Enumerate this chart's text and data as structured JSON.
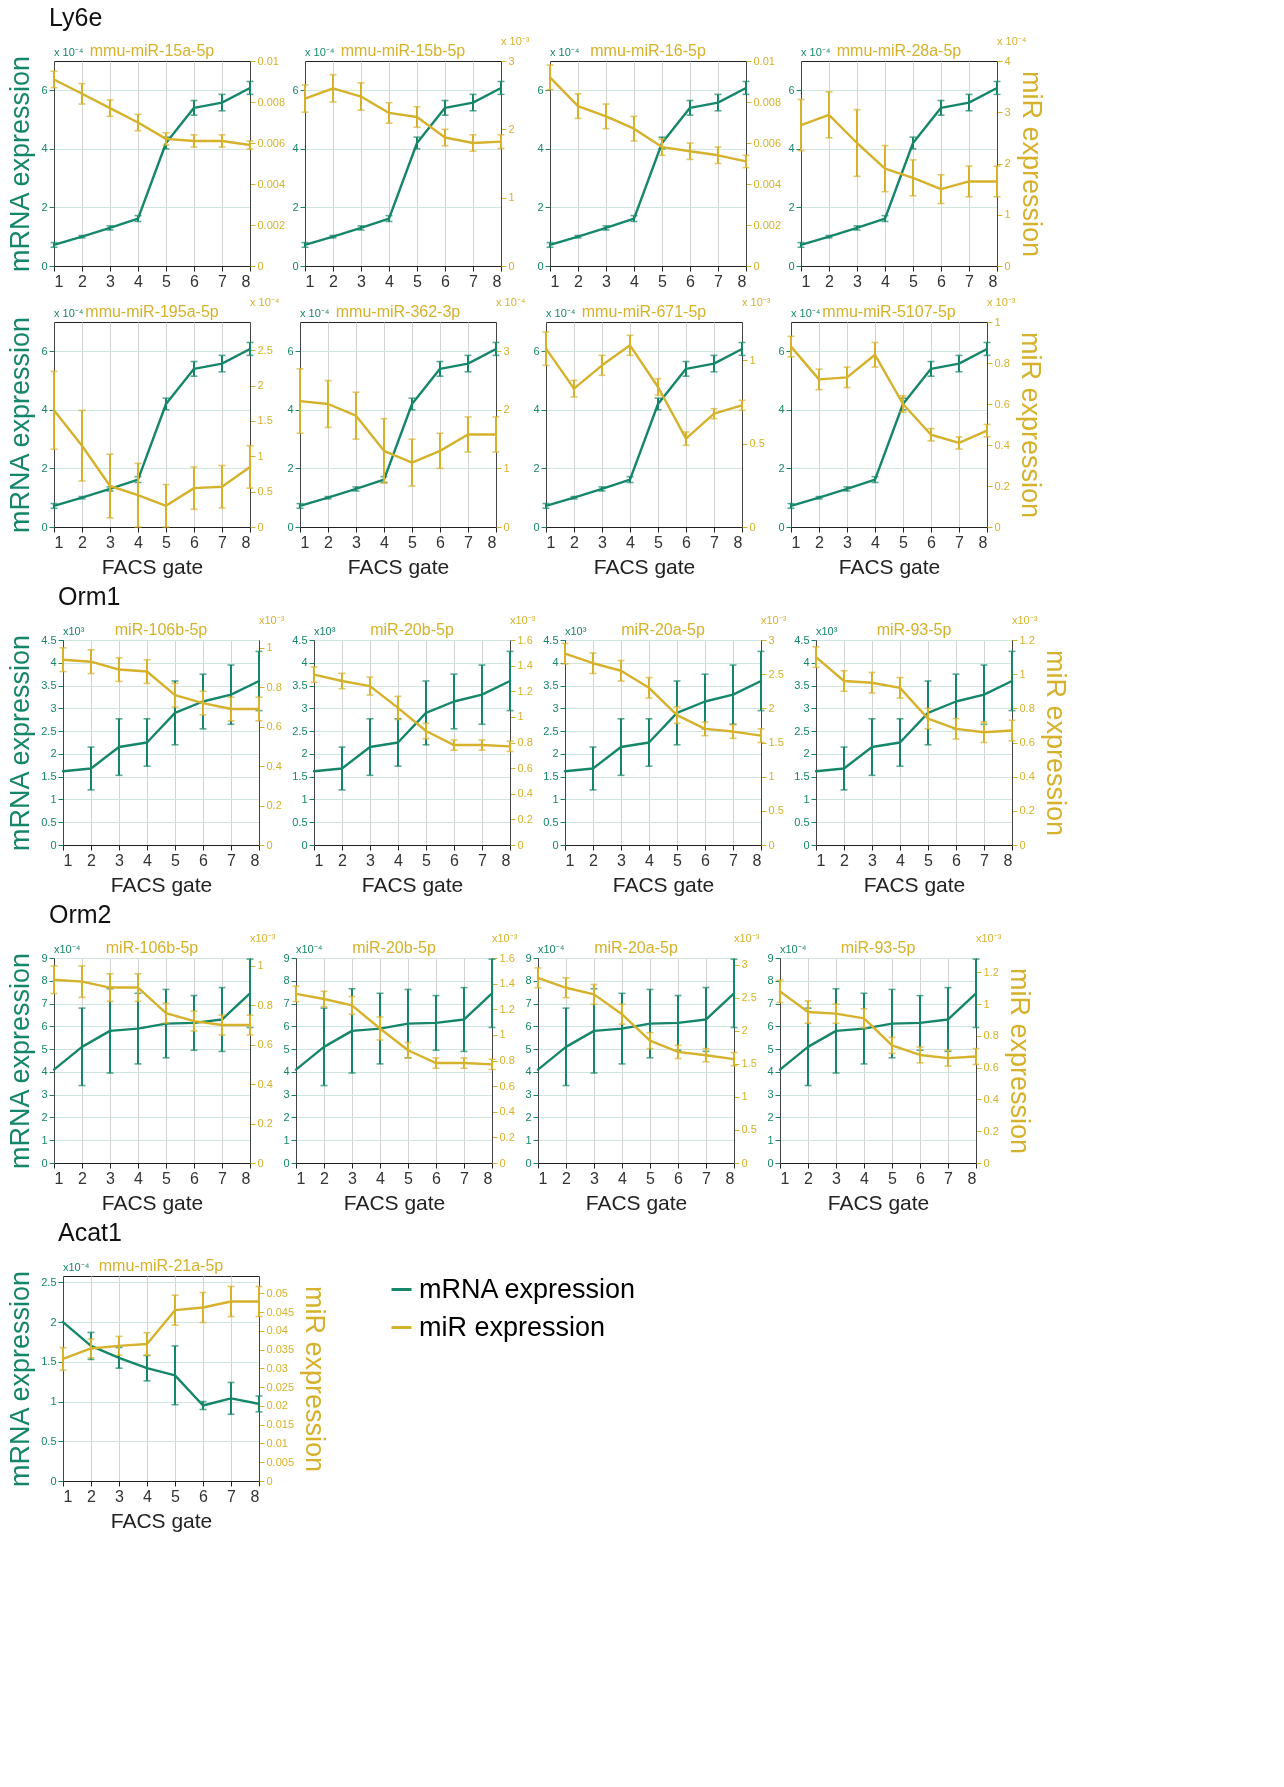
{
  "chart_data": [
    {
      "type": "line",
      "title": "mmu-miR-15a-5p",
      "subtitle": "Ly6e",
      "ylabel": "mRNA expression",
      "annotations": [
        "x 10⁻⁴"
      ],
      "x": [
        1,
        2,
        3,
        4,
        5,
        6,
        7,
        8
      ],
      "xlim": [
        1,
        8
      ],
      "xticks": [
        1,
        2,
        3,
        4,
        5,
        6,
        7,
        8
      ],
      "ylim": [
        0,
        7
      ],
      "yticks": [
        0,
        2,
        4,
        6
      ],
      "y2lim": [
        0,
        0.01
      ],
      "y2ticks": [
        0,
        0.002,
        0.004,
        0.006,
        0.008,
        0.01
      ],
      "grid": true,
      "series": [
        {
          "color": "#16866a",
          "values": [
            0.72,
            1.0,
            1.3,
            1.62,
            4.2,
            5.4,
            5.58,
            6.08
          ],
          "errors": [
            0.08,
            0.04,
            0.07,
            0.1,
            0.2,
            0.25,
            0.28,
            0.22
          ]
        },
        {
          "color": "#d5b12c",
          "axis": "y2",
          "values": [
            0.0091,
            0.0084,
            0.0077,
            0.007,
            0.0062,
            0.0061,
            0.0061,
            0.0059
          ],
          "errors": [
            0.0004,
            0.0005,
            0.0004,
            0.0004,
            0.0003,
            0.0003,
            0.0003,
            0.0002
          ]
        }
      ]
    },
    {
      "type": "line",
      "title": "mmu-miR-15b-5p",
      "annotations": [
        "x 10⁻⁴",
        "x 10⁻³"
      ],
      "x": [
        1,
        2,
        3,
        4,
        5,
        6,
        7,
        8
      ],
      "xlim": [
        1,
        8
      ],
      "xticks": [
        1,
        2,
        3,
        4,
        5,
        6,
        7,
        8
      ],
      "ylim": [
        0,
        7
      ],
      "yticks": [
        0,
        2,
        4,
        6
      ],
      "y2lim": [
        0,
        3
      ],
      "y2ticks": [
        0,
        1,
        2,
        3
      ],
      "grid": true,
      "series": [
        {
          "color": "#16866a",
          "values": [
            0.72,
            1.0,
            1.3,
            1.62,
            4.2,
            5.4,
            5.58,
            6.08
          ],
          "errors": [
            0.08,
            0.04,
            0.07,
            0.1,
            0.2,
            0.25,
            0.28,
            0.22
          ]
        },
        {
          "color": "#d5b12c",
          "axis": "y2",
          "values": [
            2.45,
            2.6,
            2.48,
            2.24,
            2.18,
            1.88,
            1.8,
            1.82
          ],
          "errors": [
            0.2,
            0.2,
            0.2,
            0.15,
            0.15,
            0.12,
            0.12,
            0.1
          ]
        }
      ]
    },
    {
      "type": "line",
      "title": "mmu-miR-16-5p",
      "annotations": [
        "x 10⁻⁴"
      ],
      "x": [
        1,
        2,
        3,
        4,
        5,
        6,
        7,
        8
      ],
      "xlim": [
        1,
        8
      ],
      "xticks": [
        1,
        2,
        3,
        4,
        5,
        6,
        7,
        8
      ],
      "ylim": [
        0,
        7
      ],
      "yticks": [
        0,
        2,
        4,
        6
      ],
      "y2lim": [
        0,
        0.01
      ],
      "y2ticks": [
        0,
        0.002,
        0.004,
        0.006,
        0.008,
        0.01
      ],
      "grid": true,
      "series": [
        {
          "color": "#16866a",
          "values": [
            0.72,
            1.0,
            1.3,
            1.62,
            4.2,
            5.4,
            5.58,
            6.08
          ],
          "errors": [
            0.08,
            0.04,
            0.07,
            0.1,
            0.2,
            0.25,
            0.28,
            0.22
          ]
        },
        {
          "color": "#d5b12c",
          "axis": "y2",
          "values": [
            0.0092,
            0.0078,
            0.0073,
            0.0067,
            0.0058,
            0.0056,
            0.0054,
            0.0051
          ],
          "errors": [
            0.0006,
            0.0006,
            0.0006,
            0.0006,
            0.0004,
            0.0004,
            0.0004,
            0.0003
          ]
        }
      ]
    },
    {
      "type": "line",
      "title": "mmu-miR-28a-5p",
      "y2label": "miR expression",
      "annotations": [
        "x 10⁻⁴",
        "x 10⁻⁴"
      ],
      "x": [
        1,
        2,
        3,
        4,
        5,
        6,
        7,
        8
      ],
      "xlim": [
        1,
        8
      ],
      "xticks": [
        1,
        2,
        3,
        4,
        5,
        6,
        7,
        8
      ],
      "ylim": [
        0,
        7
      ],
      "yticks": [
        0,
        2,
        4,
        6
      ],
      "y2lim": [
        0,
        4
      ],
      "y2ticks": [
        0,
        1,
        2,
        3,
        4
      ],
      "grid": true,
      "series": [
        {
          "color": "#16866a",
          "values": [
            0.72,
            1.0,
            1.3,
            1.62,
            4.2,
            5.4,
            5.58,
            6.08
          ],
          "errors": [
            0.08,
            0.04,
            0.07,
            0.1,
            0.2,
            0.25,
            0.28,
            0.22
          ]
        },
        {
          "color": "#d5b12c",
          "axis": "y2",
          "values": [
            2.75,
            2.95,
            2.4,
            1.9,
            1.72,
            1.5,
            1.65,
            1.65
          ],
          "errors": [
            0.5,
            0.45,
            0.65,
            0.45,
            0.35,
            0.28,
            0.3,
            0.3
          ]
        }
      ]
    },
    {
      "type": "line",
      "title": "mmu-miR-195a-5p",
      "xlabel": "FACS gate",
      "ylabel": "mRNA expression",
      "annotations": [
        "x 10⁻⁴",
        "x 10⁻⁴"
      ],
      "x": [
        1,
        2,
        3,
        4,
        5,
        6,
        7,
        8
      ],
      "xlim": [
        1,
        8
      ],
      "xticks": [
        1,
        2,
        3,
        4,
        5,
        6,
        7,
        8
      ],
      "ylim": [
        0,
        7
      ],
      "yticks": [
        0,
        2,
        4,
        6
      ],
      "y2lim": [
        0,
        2.9
      ],
      "y2ticks": [
        0,
        0.5,
        1,
        1.5,
        2,
        2.5
      ],
      "grid": true,
      "series": [
        {
          "color": "#16866a",
          "values": [
            0.72,
            1.0,
            1.3,
            1.62,
            4.2,
            5.4,
            5.58,
            6.08
          ],
          "errors": [
            0.08,
            0.04,
            0.07,
            0.1,
            0.2,
            0.25,
            0.28,
            0.22
          ]
        },
        {
          "color": "#d5b12c",
          "axis": "y2",
          "values": [
            1.65,
            1.15,
            0.58,
            0.45,
            0.3,
            0.55,
            0.57,
            0.85
          ],
          "errors": [
            0.55,
            0.5,
            0.45,
            0.45,
            0.3,
            0.3,
            0.3,
            0.3
          ]
        }
      ]
    },
    {
      "type": "line",
      "title": "mmu-miR-362-3p",
      "xlabel": "FACS gate",
      "annotations": [
        "x 10⁻⁴",
        "x 10⁻⁴"
      ],
      "x": [
        1,
        2,
        3,
        4,
        5,
        6,
        7,
        8
      ],
      "xlim": [
        1,
        8
      ],
      "xticks": [
        1,
        2,
        3,
        4,
        5,
        6,
        7,
        8
      ],
      "ylim": [
        0,
        7
      ],
      "yticks": [
        0,
        2,
        4,
        6
      ],
      "y2lim": [
        0,
        3.5
      ],
      "y2ticks": [
        0,
        1,
        2,
        3
      ],
      "grid": true,
      "series": [
        {
          "color": "#16866a",
          "values": [
            0.72,
            1.0,
            1.3,
            1.62,
            4.2,
            5.4,
            5.58,
            6.08
          ],
          "errors": [
            0.08,
            0.04,
            0.07,
            0.1,
            0.2,
            0.25,
            0.28,
            0.22
          ]
        },
        {
          "color": "#d5b12c",
          "axis": "y2",
          "values": [
            2.15,
            2.1,
            1.9,
            1.3,
            1.1,
            1.3,
            1.58,
            1.58
          ],
          "errors": [
            0.55,
            0.4,
            0.4,
            0.55,
            0.4,
            0.3,
            0.3,
            0.3
          ]
        }
      ]
    },
    {
      "type": "line",
      "title": "mmu-miR-671-5p",
      "xlabel": "FACS gate",
      "annotations": [
        "x 10⁻⁴",
        "x 10⁻³"
      ],
      "x": [
        1,
        2,
        3,
        4,
        5,
        6,
        7,
        8
      ],
      "xlim": [
        1,
        8
      ],
      "xticks": [
        1,
        2,
        3,
        4,
        5,
        6,
        7,
        8
      ],
      "ylim": [
        0,
        7
      ],
      "yticks": [
        0,
        2,
        4,
        6
      ],
      "y2lim": [
        0,
        1.23
      ],
      "y2ticks": [
        0,
        0.5,
        1
      ],
      "grid": true,
      "series": [
        {
          "color": "#16866a",
          "values": [
            0.72,
            1.0,
            1.3,
            1.62,
            4.2,
            5.4,
            5.58,
            6.08
          ],
          "errors": [
            0.08,
            0.04,
            0.07,
            0.1,
            0.2,
            0.25,
            0.28,
            0.22
          ]
        },
        {
          "color": "#d5b12c",
          "axis": "y2",
          "values": [
            1.07,
            0.83,
            0.97,
            1.09,
            0.84,
            0.53,
            0.68,
            0.73
          ],
          "errors": [
            0.1,
            0.05,
            0.06,
            0.06,
            0.05,
            0.04,
            0.03,
            0.03
          ]
        }
      ]
    },
    {
      "type": "line",
      "title": "mmu-miR-5107-5p",
      "xlabel": "FACS gate",
      "y2label": "miR expression",
      "annotations": [
        "x 10⁻⁴",
        "x 10⁻³"
      ],
      "x": [
        1,
        2,
        3,
        4,
        5,
        6,
        7,
        8
      ],
      "xlim": [
        1,
        8
      ],
      "xticks": [
        1,
        2,
        3,
        4,
        5,
        6,
        7,
        8
      ],
      "ylim": [
        0,
        7
      ],
      "yticks": [
        0,
        2,
        4,
        6
      ],
      "y2lim": [
        0,
        1
      ],
      "y2ticks": [
        0,
        0.2,
        0.4,
        0.6,
        0.8,
        1
      ],
      "grid": true,
      "series": [
        {
          "color": "#16866a",
          "values": [
            0.72,
            1.0,
            1.3,
            1.62,
            4.2,
            5.4,
            5.58,
            6.08
          ],
          "errors": [
            0.08,
            0.04,
            0.07,
            0.1,
            0.2,
            0.25,
            0.28,
            0.22
          ]
        },
        {
          "color": "#d5b12c",
          "axis": "y2",
          "values": [
            0.88,
            0.72,
            0.73,
            0.84,
            0.6,
            0.45,
            0.41,
            0.47
          ],
          "errors": [
            0.05,
            0.05,
            0.05,
            0.06,
            0.04,
            0.03,
            0.03,
            0.03
          ]
        }
      ]
    },
    {
      "type": "line",
      "title": "miR-106b-5p",
      "subtitle": "Orm1",
      "xlabel": "FACS gate",
      "ylabel": "mRNA expression",
      "annotations": [
        "x10³",
        "x10⁻³"
      ],
      "x": [
        1,
        2,
        3,
        4,
        5,
        6,
        7,
        8
      ],
      "xlim": [
        1,
        8
      ],
      "xticks": [
        1,
        2,
        3,
        4,
        5,
        6,
        7,
        8
      ],
      "ylim": [
        0,
        4.5
      ],
      "yticks": [
        0,
        0.5,
        1,
        1.5,
        2,
        2.5,
        3,
        3.5,
        4,
        4.5
      ],
      "y2lim": [
        0,
        1.04
      ],
      "y2ticks": [
        0,
        0.2,
        0.4,
        0.6,
        0.8,
        1
      ],
      "grid": true,
      "series": [
        {
          "color": "#16866a",
          "values": [
            1.62,
            1.68,
            2.15,
            2.25,
            2.9,
            3.15,
            3.3,
            3.6
          ],
          "errors": [
            null,
            0.47,
            0.62,
            0.52,
            0.7,
            0.6,
            0.65,
            0.65
          ]
        },
        {
          "color": "#d5b12c",
          "axis": "y2",
          "values": [
            0.94,
            0.93,
            0.89,
            0.88,
            0.76,
            0.72,
            0.69,
            0.69
          ],
          "errors": [
            0.06,
            0.06,
            0.06,
            0.06,
            0.06,
            0.06,
            0.06,
            0.06
          ]
        }
      ]
    },
    {
      "type": "line",
      "title": "miR-20b-5p",
      "xlabel": "FACS gate",
      "annotations": [
        "x10³",
        "x10⁻³"
      ],
      "x": [
        1,
        2,
        3,
        4,
        5,
        6,
        7,
        8
      ],
      "xlim": [
        1,
        8
      ],
      "xticks": [
        1,
        2,
        3,
        4,
        5,
        6,
        7,
        8
      ],
      "ylim": [
        0,
        4.5
      ],
      "yticks": [
        0,
        0.5,
        1,
        1.5,
        2,
        2.5,
        3,
        3.5,
        4,
        4.5
      ],
      "y2lim": [
        0,
        1.6
      ],
      "y2ticks": [
        0,
        0.2,
        0.4,
        0.6,
        0.8,
        1,
        1.2,
        1.4,
        1.6
      ],
      "grid": true,
      "series": [
        {
          "color": "#16866a",
          "values": [
            1.62,
            1.68,
            2.15,
            2.25,
            2.9,
            3.15,
            3.3,
            3.6
          ],
          "errors": [
            null,
            0.47,
            0.62,
            0.52,
            0.7,
            0.6,
            0.65,
            0.65
          ]
        },
        {
          "color": "#d5b12c",
          "axis": "y2",
          "values": [
            1.33,
            1.28,
            1.24,
            1.07,
            0.89,
            0.78,
            0.78,
            0.77
          ],
          "errors": [
            0.06,
            0.06,
            0.07,
            0.09,
            0.06,
            0.04,
            0.04,
            0.04
          ]
        }
      ]
    },
    {
      "type": "line",
      "title": "miR-20a-5p",
      "xlabel": "FACS gate",
      "annotations": [
        "x10³",
        "x10⁻³"
      ],
      "x": [
        1,
        2,
        3,
        4,
        5,
        6,
        7,
        8
      ],
      "xlim": [
        1,
        8
      ],
      "xticks": [
        1,
        2,
        3,
        4,
        5,
        6,
        7,
        8
      ],
      "ylim": [
        0,
        4.5
      ],
      "yticks": [
        0,
        0.5,
        1,
        1.5,
        2,
        2.5,
        3,
        3.5,
        4,
        4.5
      ],
      "y2lim": [
        0,
        3
      ],
      "y2ticks": [
        0,
        0.5,
        1,
        1.5,
        2,
        2.5,
        3
      ],
      "grid": true,
      "series": [
        {
          "color": "#16866a",
          "values": [
            1.62,
            1.68,
            2.15,
            2.25,
            2.9,
            3.15,
            3.3,
            3.6
          ],
          "errors": [
            null,
            0.47,
            0.62,
            0.52,
            0.7,
            0.6,
            0.65,
            0.65
          ]
        },
        {
          "color": "#d5b12c",
          "axis": "y2",
          "values": [
            2.8,
            2.66,
            2.55,
            2.3,
            1.9,
            1.7,
            1.66,
            1.6
          ],
          "errors": [
            0.15,
            0.15,
            0.15,
            0.15,
            0.12,
            0.1,
            0.1,
            0.1
          ]
        }
      ]
    },
    {
      "type": "line",
      "title": "miR-93-5p",
      "xlabel": "FACS gate",
      "y2label": "miR expression",
      "annotations": [
        "x10³",
        "x10⁻³"
      ],
      "x": [
        1,
        2,
        3,
        4,
        5,
        6,
        7,
        8
      ],
      "xlim": [
        1,
        8
      ],
      "xticks": [
        1,
        2,
        3,
        4,
        5,
        6,
        7,
        8
      ],
      "ylim": [
        0,
        4.5
      ],
      "yticks": [
        0,
        0.5,
        1,
        1.5,
        2,
        2.5,
        3,
        3.5,
        4,
        4.5
      ],
      "y2lim": [
        0,
        1.2
      ],
      "y2ticks": [
        0,
        0.2,
        0.4,
        0.6,
        0.8,
        1,
        1.2
      ],
      "grid": true,
      "series": [
        {
          "color": "#16866a",
          "values": [
            1.62,
            1.68,
            2.15,
            2.25,
            2.9,
            3.15,
            3.3,
            3.6
          ],
          "errors": [
            null,
            0.47,
            0.62,
            0.52,
            0.7,
            0.6,
            0.65,
            0.65
          ]
        },
        {
          "color": "#d5b12c",
          "axis": "y2",
          "values": [
            1.1,
            0.96,
            0.95,
            0.92,
            0.74,
            0.68,
            0.66,
            0.67
          ],
          "errors": [
            0.06,
            0.06,
            0.06,
            0.06,
            0.06,
            0.06,
            0.06,
            0.06
          ]
        }
      ]
    },
    {
      "type": "line",
      "title": "miR-106b-5p",
      "subtitle": "Orm2",
      "xlabel": "FACS gate",
      "ylabel": "mRNA expression",
      "annotations": [
        "x10⁻⁴",
        "x10⁻³"
      ],
      "x": [
        1,
        2,
        3,
        4,
        5,
        6,
        7,
        8
      ],
      "xlim": [
        1,
        8
      ],
      "xticks": [
        1,
        2,
        3,
        4,
        5,
        6,
        7,
        8
      ],
      "ylim": [
        0,
        9
      ],
      "yticks": [
        0,
        1,
        2,
        3,
        4,
        5,
        6,
        7,
        8,
        9
      ],
      "y2lim": [
        0,
        1.04
      ],
      "y2ticks": [
        0,
        0.2,
        0.4,
        0.6,
        0.8,
        1
      ],
      "grid": true,
      "series": [
        {
          "color": "#16866a",
          "values": [
            4.1,
            5.1,
            5.8,
            5.9,
            6.12,
            6.15,
            6.3,
            7.45
          ],
          "errors": [
            null,
            1.7,
            1.85,
            1.55,
            1.5,
            1.2,
            1.4,
            1.5
          ]
        },
        {
          "color": "#d5b12c",
          "axis": "y2",
          "values": [
            0.93,
            0.92,
            0.89,
            0.89,
            0.76,
            0.72,
            0.7,
            0.7
          ],
          "errors": [
            0.07,
            0.08,
            0.07,
            0.07,
            0.05,
            0.05,
            0.05,
            0.05
          ]
        }
      ]
    },
    {
      "type": "line",
      "title": "miR-20b-5p",
      "xlabel": "FACS gate",
      "annotations": [
        "x10⁻⁴",
        "x10⁻³"
      ],
      "x": [
        1,
        2,
        3,
        4,
        5,
        6,
        7,
        8
      ],
      "xlim": [
        1,
        8
      ],
      "xticks": [
        1,
        2,
        3,
        4,
        5,
        6,
        7,
        8
      ],
      "ylim": [
        0,
        9
      ],
      "yticks": [
        0,
        1,
        2,
        3,
        4,
        5,
        6,
        7,
        8,
        9
      ],
      "y2lim": [
        0,
        1.6
      ],
      "y2ticks": [
        0,
        0.2,
        0.4,
        0.6,
        0.8,
        1,
        1.2,
        1.4,
        1.6
      ],
      "grid": true,
      "series": [
        {
          "color": "#16866a",
          "values": [
            4.1,
            5.1,
            5.8,
            5.9,
            6.12,
            6.15,
            6.3,
            7.45
          ],
          "errors": [
            null,
            1.7,
            1.85,
            1.55,
            1.5,
            1.2,
            1.4,
            1.5
          ]
        },
        {
          "color": "#d5b12c",
          "axis": "y2",
          "values": [
            1.32,
            1.28,
            1.23,
            1.05,
            0.88,
            0.78,
            0.78,
            0.77
          ],
          "errors": [
            0.06,
            0.06,
            0.07,
            0.09,
            0.06,
            0.04,
            0.04,
            0.04
          ]
        }
      ]
    },
    {
      "type": "line",
      "title": "miR-20a-5p",
      "xlabel": "FACS gate",
      "annotations": [
        "x10⁻⁴",
        "x10⁻³"
      ],
      "x": [
        1,
        2,
        3,
        4,
        5,
        6,
        7,
        8
      ],
      "xlim": [
        1,
        8
      ],
      "xticks": [
        1,
        2,
        3,
        4,
        5,
        6,
        7,
        8
      ],
      "ylim": [
        0,
        9
      ],
      "yticks": [
        0,
        1,
        2,
        3,
        4,
        5,
        6,
        7,
        8,
        9
      ],
      "y2lim": [
        0,
        3.1
      ],
      "y2ticks": [
        0,
        0.5,
        1,
        1.5,
        2,
        2.5,
        3
      ],
      "grid": true,
      "series": [
        {
          "color": "#16866a",
          "values": [
            4.1,
            5.1,
            5.8,
            5.9,
            6.12,
            6.15,
            6.3,
            7.45
          ],
          "errors": [
            null,
            1.7,
            1.85,
            1.55,
            1.5,
            1.2,
            1.4,
            1.5
          ]
        },
        {
          "color": "#d5b12c",
          "axis": "y2",
          "values": [
            2.8,
            2.65,
            2.55,
            2.25,
            1.85,
            1.68,
            1.63,
            1.57
          ],
          "errors": [
            0.15,
            0.15,
            0.15,
            0.15,
            0.12,
            0.1,
            0.1,
            0.1
          ]
        }
      ]
    },
    {
      "type": "line",
      "title": "miR-93-5p",
      "xlabel": "FACS gate",
      "y2label": "miR expression",
      "annotations": [
        "x10⁻⁴",
        "x10⁻³"
      ],
      "x": [
        1,
        2,
        3,
        4,
        5,
        6,
        7,
        8
      ],
      "xlim": [
        1,
        8
      ],
      "xticks": [
        1,
        2,
        3,
        4,
        5,
        6,
        7,
        8
      ],
      "ylim": [
        0,
        9
      ],
      "yticks": [
        0,
        1,
        2,
        3,
        4,
        5,
        6,
        7,
        8,
        9
      ],
      "y2lim": [
        0,
        1.29
      ],
      "y2ticks": [
        0,
        0.2,
        0.4,
        0.6,
        0.8,
        1,
        1.2
      ],
      "grid": true,
      "series": [
        {
          "color": "#16866a",
          "values": [
            4.1,
            5.1,
            5.8,
            5.9,
            6.12,
            6.15,
            6.3,
            7.45
          ],
          "errors": [
            null,
            1.7,
            1.85,
            1.55,
            1.5,
            1.2,
            1.4,
            1.5
          ]
        },
        {
          "color": "#d5b12c",
          "axis": "y2",
          "values": [
            1.08,
            0.95,
            0.94,
            0.91,
            0.74,
            0.68,
            0.66,
            0.67
          ],
          "errors": [
            0.07,
            0.07,
            0.06,
            0.06,
            0.05,
            0.05,
            0.05,
            0.05
          ]
        }
      ]
    },
    {
      "type": "line",
      "title": "mmu-miR-21a-5p",
      "subtitle": "Acat1",
      "xlabel": "FACS gate",
      "ylabel": "mRNA expression",
      "y2label": "miR expression",
      "annotations": [
        "x10⁻⁴"
      ],
      "x": [
        1,
        2,
        3,
        4,
        5,
        6,
        7,
        8
      ],
      "xlim": [
        1,
        8
      ],
      "xticks": [
        1,
        2,
        3,
        4,
        5,
        6,
        7,
        8
      ],
      "ylim": [
        0,
        2.58
      ],
      "yticks": [
        0,
        0.5,
        1,
        1.5,
        2,
        2.5
      ],
      "y2lim": [
        0,
        0.0546
      ],
      "y2ticks": [
        0,
        0.005,
        0.01,
        0.015,
        0.02,
        0.025,
        0.03,
        0.035,
        0.04,
        0.045,
        0.05
      ],
      "grid": true,
      "legend": "right",
      "series": [
        {
          "name": "mRNA expression",
          "color": "#16866a",
          "values": [
            2.0,
            1.7,
            1.55,
            1.42,
            1.33,
            0.95,
            1.04,
            0.97
          ],
          "errors": [
            null,
            0.17,
            0.13,
            0.16,
            0.37,
            0.05,
            0.2,
            0.1
          ]
        },
        {
          "name": "miR expression",
          "color": "#d5b12c",
          "axis": "y2",
          "values": [
            0.0325,
            0.0353,
            0.036,
            0.0365,
            0.0455,
            0.0462,
            0.0478,
            0.0478
          ],
          "errors": [
            0.003,
            0.0025,
            0.0025,
            0.003,
            0.004,
            0.004,
            0.004,
            0.004
          ]
        }
      ]
    }
  ]
}
